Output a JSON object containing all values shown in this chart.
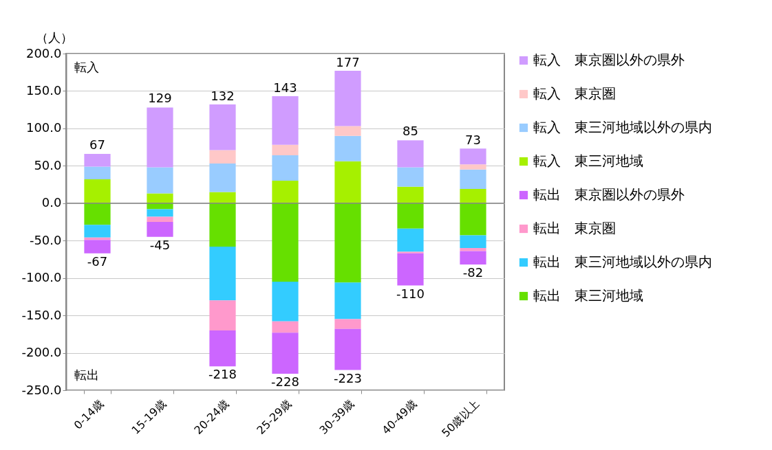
{
  "chart_data": {
    "type": "bar",
    "stacked": true,
    "ylabel": "（人）",
    "categories": [
      "0-14歳",
      "15-19歳",
      "20-24歳",
      "25-29歳",
      "30-39歳",
      "40-49歳",
      "50歳以上"
    ],
    "series": [
      {
        "name": "転入　東三河地域",
        "color": "#a6f000",
        "values": [
          32,
          13,
          15,
          30,
          56,
          22,
          19
        ]
      },
      {
        "name": "転入　東三河地域以外の県内",
        "color": "#99ccff",
        "values": [
          17,
          35,
          38,
          34,
          34,
          26,
          26
        ]
      },
      {
        "name": "転入　東京圏",
        "color": "#ffc8c8",
        "values": [
          null,
          null,
          18,
          14,
          13,
          null,
          7
        ]
      },
      {
        "name": "転入　東京圏以外の県外",
        "color": "#d09cff",
        "values": [
          17,
          80,
          61,
          65,
          74,
          36,
          21
        ]
      },
      {
        "name": "転出　東三河地域",
        "color": "#66e000",
        "values": [
          -29,
          -8,
          -58,
          -105,
          -106,
          -34,
          -43
        ]
      },
      {
        "name": "転出　東三河地域以外の県内",
        "color": "#33ccff",
        "values": [
          -17,
          -10,
          -72,
          -53,
          -49,
          -31,
          -17
        ]
      },
      {
        "name": "転出　東京圏",
        "color": "#ff99cc",
        "values": [
          -3,
          -7,
          -40,
          -15,
          -13,
          -2,
          -4
        ]
      },
      {
        "name": "転出　東京圏以外の県外",
        "color": "#cc66ff",
        "values": [
          -18,
          -20,
          -48,
          -55,
          -55,
          -43,
          -18
        ]
      }
    ],
    "ylim": [
      -250,
      200
    ],
    "yticks": [
      {
        "value": -250,
        "label": "-250.0"
      },
      {
        "value": -200,
        "label": "-200.0"
      },
      {
        "value": -150,
        "label": "-150.0"
      },
      {
        "value": -100,
        "label": "-100.0"
      },
      {
        "value": -50,
        "label": "-50.0"
      },
      {
        "value": 0,
        "label": "0.0"
      },
      {
        "value": 50,
        "label": "50.0"
      },
      {
        "value": 100,
        "label": "100.0"
      },
      {
        "value": 150,
        "label": "150.0"
      },
      {
        "value": 200,
        "label": "200.0"
      }
    ],
    "grid": "y",
    "legend": "right",
    "annotations": [
      "転入",
      "転出",
      {
        "text": "67",
        "x": "0-14歳",
        "y": 67
      },
      {
        "text": "129",
        "x": "15-19歳",
        "y": 129
      },
      {
        "text": "132",
        "x": "20-24歳",
        "y": 132
      },
      {
        "text": "143",
        "x": "25-29歳",
        "y": 143
      },
      {
        "text": "177",
        "x": "30-39歳",
        "y": 177
      },
      {
        "text": "85",
        "x": "40-49歳",
        "y": 85
      },
      {
        "text": "73",
        "x": "50歳以上",
        "y": 73
      },
      {
        "text": "-67",
        "x": "0-14歳",
        "y": -67
      },
      {
        "text": "-45",
        "x": "15-19歳",
        "y": -45
      },
      {
        "text": "-218",
        "x": "20-24歳",
        "y": -218
      },
      {
        "text": "-228",
        "x": "25-29歳",
        "y": -228
      },
      {
        "text": "-223",
        "x": "30-39歳",
        "y": -223
      },
      {
        "text": "-110",
        "x": "40-49歳",
        "y": -110
      },
      {
        "text": "-82",
        "x": "50歳以上",
        "y": -82
      }
    ]
  }
}
